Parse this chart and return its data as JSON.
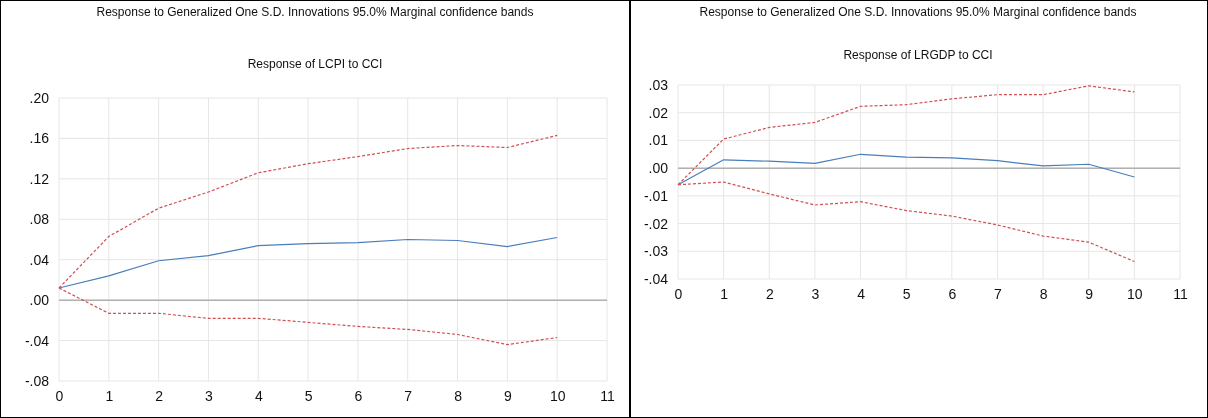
{
  "chart_data": [
    {
      "type": "line",
      "title": "Response to Generalized One S.D. Innovations 95.0% Marginal confidence bands",
      "subtitle": "Response of LCPI to CCI",
      "x": [
        0,
        1,
        2,
        3,
        4,
        5,
        6,
        7,
        8,
        9,
        10
      ],
      "xlim": [
        0,
        11
      ],
      "xticks": [
        0,
        1,
        2,
        3,
        4,
        5,
        6,
        7,
        8,
        9,
        10,
        11
      ],
      "ylim": [
        -0.08,
        0.2
      ],
      "yticks": [
        {
          "value": -0.08,
          "label": "-.08"
        },
        {
          "value": -0.04,
          "label": "-.04"
        },
        {
          "value": 0,
          "label": ".00"
        },
        {
          "value": 0.04,
          "label": ".04"
        },
        {
          "value": 0.08,
          "label": ".08"
        },
        {
          "value": 0.12,
          "label": ".12"
        },
        {
          "value": 0.16,
          "label": ".16"
        },
        {
          "value": 0.2,
          "label": ".20"
        }
      ],
      "grid": true,
      "marker": "none",
      "ref_lines": [
        {
          "axis": "y",
          "value": 0,
          "color": "#b0b0b0"
        }
      ],
      "series": [
        {
          "color": "#4a7ebb",
          "line_style": "solid",
          "values": [
            0.012,
            0.024,
            0.039,
            0.044,
            0.054,
            0.056,
            0.057,
            0.06,
            0.059,
            0.053,
            0.062
          ]
        },
        {
          "color": "#d05050",
          "line_style": "dashed",
          "values": [
            0.012,
            0.063,
            0.091,
            0.107,
            0.126,
            0.135,
            0.142,
            0.15,
            0.153,
            0.151,
            0.163
          ]
        },
        {
          "color": "#d05050",
          "line_style": "dashed",
          "values": [
            0.012,
            -0.013,
            -0.013,
            -0.018,
            -0.018,
            -0.022,
            -0.026,
            -0.029,
            -0.034,
            -0.044,
            -0.037
          ]
        }
      ]
    },
    {
      "type": "line",
      "title": "Response to Generalized One S.D. Innovations 95.0% Marginal confidence bands",
      "subtitle": "Response of LRGDP to CCI",
      "x": [
        0,
        1,
        2,
        3,
        4,
        5,
        6,
        7,
        8,
        9,
        10
      ],
      "xlim": [
        0,
        11
      ],
      "xticks": [
        0,
        1,
        2,
        3,
        4,
        5,
        6,
        7,
        8,
        9,
        10,
        11
      ],
      "ylim": [
        -0.04,
        0.03
      ],
      "yticks": [
        {
          "value": -0.04,
          "label": "-.04"
        },
        {
          "value": -0.03,
          "label": "-.03"
        },
        {
          "value": -0.02,
          "label": "-.02"
        },
        {
          "value": -0.01,
          "label": "-.01"
        },
        {
          "value": 0,
          "label": ".00"
        },
        {
          "value": 0.01,
          "label": ".01"
        },
        {
          "value": 0.02,
          "label": ".02"
        },
        {
          "value": 0.03,
          "label": ".03"
        }
      ],
      "grid": true,
      "marker": "none",
      "ref_lines": [
        {
          "axis": "y",
          "value": 0,
          "color": "#b0b0b0"
        }
      ],
      "series": [
        {
          "color": "#4a7ebb",
          "line_style": "solid",
          "values": [
            -0.006,
            0.003,
            0.0025,
            0.0017,
            0.005,
            0.004,
            0.0037,
            0.0027,
            0.0008,
            0.0014,
            -0.0032
          ]
        },
        {
          "color": "#d05050",
          "line_style": "dashed",
          "values": [
            -0.006,
            0.0105,
            0.0147,
            0.0165,
            0.0223,
            0.0229,
            0.025,
            0.0265,
            0.0265,
            0.0297,
            0.0275
          ]
        },
        {
          "color": "#d05050",
          "line_style": "dashed",
          "values": [
            -0.006,
            -0.005,
            -0.0093,
            -0.0133,
            -0.0121,
            -0.0153,
            -0.0173,
            -0.0205,
            -0.0245,
            -0.0267,
            -0.0337
          ]
        }
      ]
    }
  ]
}
